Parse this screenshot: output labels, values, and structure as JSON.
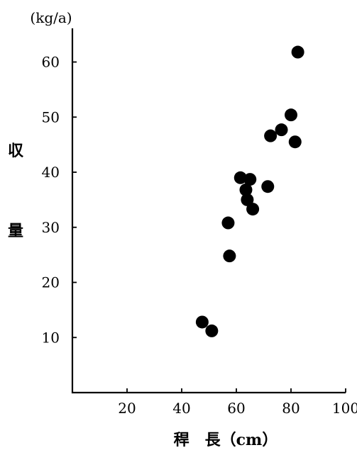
{
  "chart_data": {
    "type": "scatter",
    "unit_y": "(kg/a)",
    "ylabel": "収量",
    "xlabel": "稈　長（cm）",
    "xlim": [
      0,
      100
    ],
    "ylim": [
      0,
      65
    ],
    "xticks": [
      20,
      40,
      60,
      80,
      100
    ],
    "yticks": [
      10,
      20,
      30,
      40,
      50,
      60
    ],
    "grid": false,
    "marker_color": "#000000",
    "points": [
      {
        "x": 47.5,
        "y": 12.8
      },
      {
        "x": 51,
        "y": 11.2
      },
      {
        "x": 57,
        "y": 30.8
      },
      {
        "x": 57.5,
        "y": 24.8
      },
      {
        "x": 61.5,
        "y": 39
      },
      {
        "x": 63.5,
        "y": 36.8
      },
      {
        "x": 64,
        "y": 35
      },
      {
        "x": 65,
        "y": 38.7
      },
      {
        "x": 66,
        "y": 33.3
      },
      {
        "x": 71.5,
        "y": 37.4
      },
      {
        "x": 72.5,
        "y": 46.6
      },
      {
        "x": 76.5,
        "y": 47.7
      },
      {
        "x": 80,
        "y": 50.4
      },
      {
        "x": 81.5,
        "y": 45.5
      },
      {
        "x": 82.5,
        "y": 61.8
      }
    ]
  }
}
